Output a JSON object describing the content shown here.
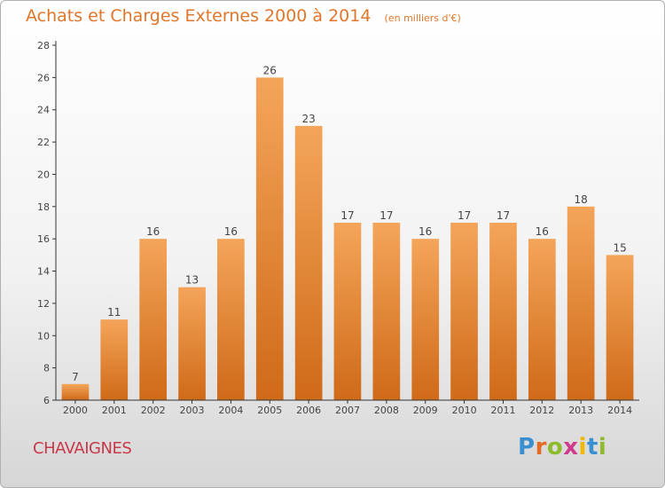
{
  "header": {
    "title": "Achats et Charges Externes 2000 à 2014",
    "unit": "(en milliers d'€)"
  },
  "footer": {
    "place": "CHAVAIGNES",
    "logo": [
      "P",
      "r",
      "o",
      "x",
      "i",
      "t",
      "i"
    ],
    "logo_colors": [
      "#3a8fd0",
      "#e36b25",
      "#8dbb2b",
      "#d03a8b",
      "#f2b800",
      "#3a8fd0",
      "#8dbb2b"
    ]
  },
  "chart_data": {
    "type": "bar",
    "title": "Achats et Charges Externes 2000 à 2014",
    "subtitle": "(en milliers d'€)",
    "categories": [
      "2000",
      "2001",
      "2002",
      "2003",
      "2004",
      "2005",
      "2006",
      "2007",
      "2008",
      "2009",
      "2010",
      "2011",
      "2012",
      "2013",
      "2014"
    ],
    "values": [
      7,
      11,
      16,
      13,
      16,
      26,
      23,
      17,
      17,
      16,
      17,
      17,
      16,
      18,
      15
    ],
    "ylim": [
      6,
      28
    ],
    "yticks": [
      6,
      8,
      10,
      12,
      14,
      16,
      18,
      20,
      22,
      24,
      26,
      28
    ],
    "grid": false,
    "bar_color_top": "#f4a55a",
    "bar_color_bottom": "#cf6a18",
    "axis_color": "#333333"
  }
}
